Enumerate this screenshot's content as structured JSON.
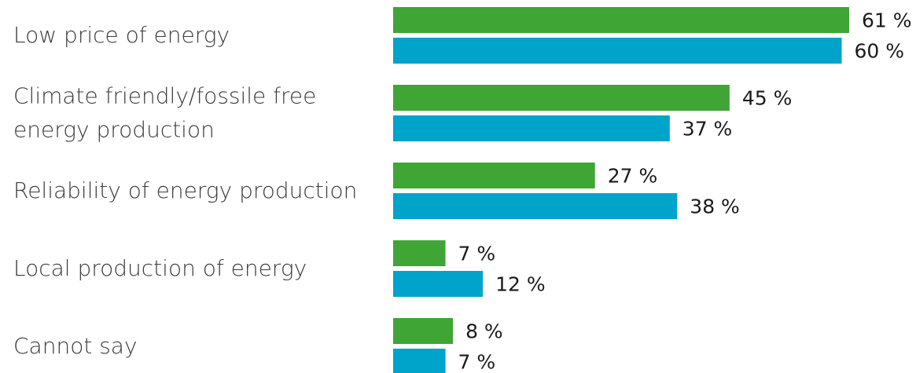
{
  "chart_data": {
    "type": "bar",
    "orientation": "horizontal",
    "categories": [
      [
        "Low price of energy"
      ],
      [
        "Climate friendly/fossile free",
        "energy production"
      ],
      [
        "Reliability of energy production"
      ],
      [
        "Local production of energy"
      ],
      [
        "Cannot say"
      ]
    ],
    "series": [
      {
        "color": "#3fa535",
        "values": [
          61,
          45,
          27,
          7,
          8
        ]
      },
      {
        "color": "#00a3c9",
        "values": [
          60,
          37,
          38,
          12,
          7
        ]
      }
    ],
    "value_suffix": " %",
    "xlim": [
      0,
      61
    ],
    "grid": false,
    "legend": "none"
  }
}
